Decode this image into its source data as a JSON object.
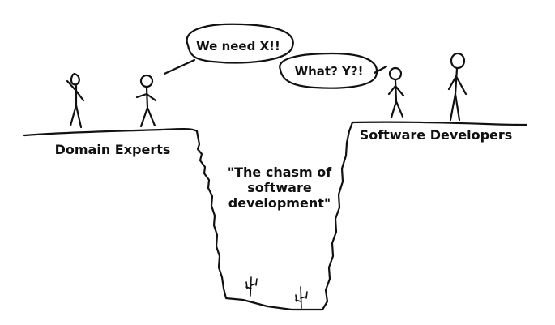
{
  "labels": {
    "domain_experts": "Domain Experts",
    "software_developers": "Software Developers",
    "chasm_line1": "\"The chasm of",
    "chasm_line2": "software",
    "chasm_line3": "development\""
  },
  "bubbles": {
    "domain_expert_speech": "We need X!!",
    "developer_speech": "What? Y?!"
  },
  "colors": {
    "ink": "#111111",
    "background": "#ffffff"
  }
}
